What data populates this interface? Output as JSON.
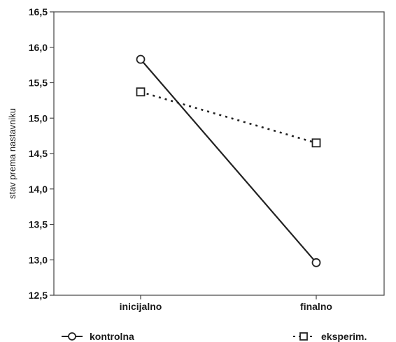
{
  "chart_data": {
    "type": "line",
    "categories": [
      "inicijalno",
      "finalno"
    ],
    "ylabel": "stav prema nastavniku",
    "ylim": [
      12.5,
      16.5
    ],
    "yticks": [
      "12,5",
      "13,0",
      "13,5",
      "14,0",
      "14,5",
      "15,0",
      "15,5",
      "16,0",
      "16,5"
    ],
    "ytick_values": [
      12.5,
      13.0,
      13.5,
      14.0,
      14.5,
      15.0,
      15.5,
      16.0,
      16.5
    ],
    "grid": false,
    "legend_position": "bottom",
    "series": [
      {
        "name": "kontrolna",
        "values": [
          15.83,
          12.96
        ],
        "marker": "circle",
        "line_style": "solid",
        "color": "#222222"
      },
      {
        "name": "eksperim.",
        "values": [
          15.37,
          14.65
        ],
        "marker": "square",
        "line_style": "dotted",
        "color": "#222222"
      }
    ]
  }
}
